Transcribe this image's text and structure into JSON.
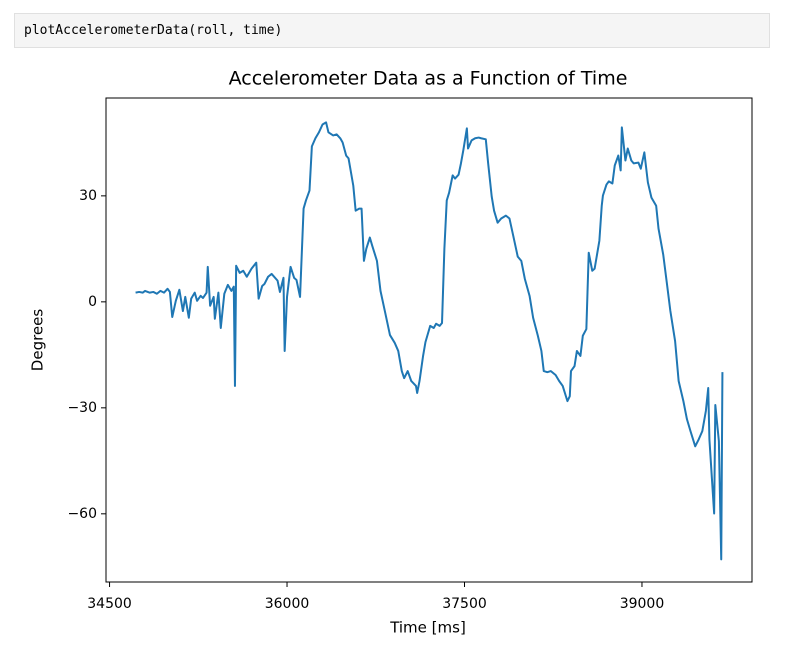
{
  "code": "plotAccelerometerData(roll, time)",
  "chart_data": {
    "type": "line",
    "title": "Accelerometer Data as a Function of Time",
    "x_label": "Time [ms]",
    "y_label": "Degrees",
    "color": "#1f77b4",
    "xlim": [
      34470,
      39930
    ],
    "ylim": [
      -79.3,
      57.7
    ],
    "xticks": [
      34500,
      36000,
      37500,
      39000
    ],
    "yticks": [
      {
        "value": -60,
        "label": "−60"
      },
      {
        "value": -30,
        "label": "−30"
      },
      0,
      30
    ],
    "x": [
      34720,
      34750,
      34780,
      34800,
      34840,
      34870,
      34900,
      34930,
      34960,
      34990,
      35010,
      35030,
      35060,
      35090,
      35120,
      35140,
      35170,
      35190,
      35220,
      35240,
      35270,
      35290,
      35320,
      35330,
      35350,
      35380,
      35390,
      35420,
      35440,
      35470,
      35500,
      35530,
      35550,
      35560,
      35570,
      35600,
      35630,
      35660,
      35700,
      35740,
      35760,
      35790,
      35810,
      35840,
      35870,
      35920,
      35940,
      35970,
      35980,
      36000,
      36030,
      36060,
      36080,
      36110,
      36140,
      36160,
      36190,
      36210,
      36240,
      36270,
      36300,
      36330,
      36350,
      36390,
      36420,
      36450,
      36470,
      36500,
      36520,
      36560,
      36580,
      36610,
      36630,
      36650,
      36670,
      36700,
      36720,
      36760,
      36790,
      36830,
      36870,
      36910,
      36940,
      36970,
      36990,
      37020,
      37050,
      37090,
      37100,
      37120,
      37150,
      37170,
      37210,
      37240,
      37260,
      37290,
      37310,
      37330,
      37350,
      37370,
      37400,
      37420,
      37450,
      37470,
      37490,
      37520,
      37530,
      37560,
      37590,
      37620,
      37640,
      37680,
      37700,
      37730,
      37750,
      37780,
      37810,
      37850,
      37880,
      37910,
      37950,
      37980,
      38010,
      38050,
      38080,
      38120,
      38150,
      38170,
      38200,
      38230,
      38270,
      38300,
      38330,
      38370,
      38390,
      38400,
      38430,
      38450,
      38480,
      38500,
      38530,
      38550,
      38580,
      38600,
      38640,
      38660,
      38670,
      38700,
      38720,
      38750,
      38770,
      38800,
      38820,
      38830,
      38860,
      38880,
      38910,
      38930,
      38970,
      38990,
      39020,
      39050,
      39080,
      39120,
      39140,
      39180,
      39210,
      39240,
      39280,
      39310,
      39350,
      39380,
      39410,
      39450,
      39480,
      39510,
      39540,
      39560,
      39570,
      39610,
      39620,
      39650,
      39670,
      39680
    ],
    "values": [
      2.6,
      2.8,
      2.6,
      3.1,
      2.6,
      2.8,
      2.3,
      3.1,
      2.6,
      3.7,
      2.8,
      -4.3,
      0.3,
      3.4,
      -2.6,
      1.4,
      -4.5,
      0.9,
      2.6,
      0.3,
      1.7,
      1.1,
      2.6,
      9.9,
      -1.1,
      1.4,
      -4.8,
      2.6,
      -7.4,
      2.3,
      4.8,
      3.1,
      4.3,
      -23.8,
      10.2,
      8.2,
      8.8,
      7.1,
      9.4,
      11.1,
      0.9,
      4.5,
      5.1,
      7.1,
      7.9,
      6.0,
      2.8,
      6.8,
      -13.9,
      1.4,
      9.9,
      6.8,
      6.2,
      1.4,
      26.4,
      28.7,
      31.5,
      44.0,
      46.3,
      48.0,
      50.2,
      50.8,
      48.0,
      47.1,
      47.4,
      46.3,
      45.1,
      41.4,
      40.6,
      32.9,
      25.8,
      26.4,
      26.4,
      11.6,
      15.0,
      18.2,
      15.9,
      11.6,
      3.1,
      -3.1,
      -9.4,
      -11.6,
      -13.9,
      -19.6,
      -21.6,
      -19.6,
      -22.4,
      -23.8,
      -25.8,
      -22.4,
      -15.3,
      -11.4,
      -6.8,
      -7.4,
      -6.2,
      -6.8,
      -6.0,
      15.0,
      28.7,
      30.9,
      35.8,
      34.9,
      36.0,
      39.2,
      42.9,
      49.1,
      43.4,
      45.7,
      46.3,
      46.5,
      46.3,
      46.0,
      39.2,
      29.8,
      25.8,
      22.4,
      23.6,
      24.4,
      23.6,
      19.0,
      12.8,
      11.6,
      6.5,
      1.7,
      -4.5,
      -9.6,
      -13.9,
      -19.6,
      -19.9,
      -19.6,
      -20.7,
      -22.4,
      -23.8,
      -28.1,
      -26.7,
      -19.6,
      -18.2,
      -13.9,
      -15.3,
      -9.6,
      -7.7,
      13.9,
      8.8,
      9.4,
      17.3,
      27.2,
      30.1,
      33.2,
      34.1,
      33.5,
      38.6,
      41.4,
      37.2,
      49.4,
      40.0,
      43.4,
      40.0,
      39.2,
      39.4,
      37.7,
      42.3,
      33.8,
      29.5,
      27.2,
      20.7,
      13.3,
      5.4,
      -2.6,
      -11.1,
      -22.4,
      -28.1,
      -33.2,
      -36.6,
      -40.9,
      -38.9,
      -36.6,
      -30.9,
      -24.4,
      -38.9,
      -59.9,
      -29.2,
      -39.4,
      -72.9,
      -19.9
    ]
  }
}
